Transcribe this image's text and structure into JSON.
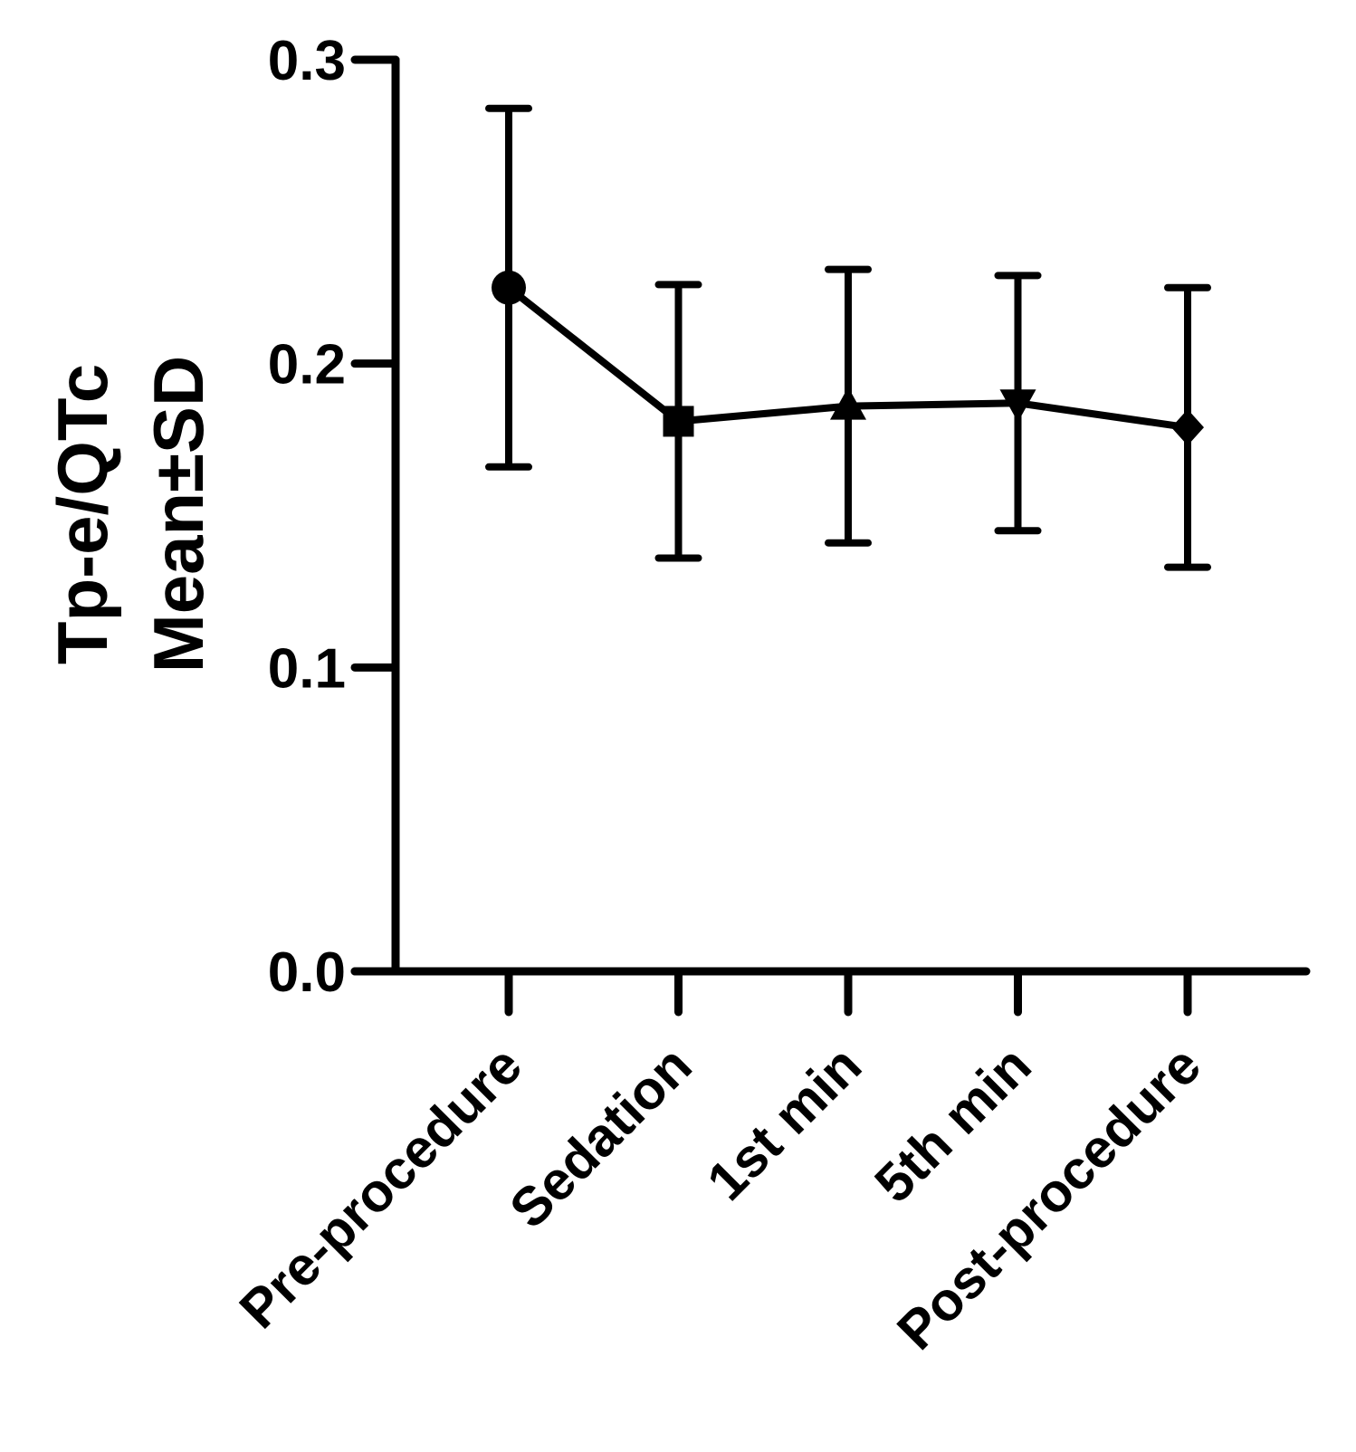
{
  "chart_data": {
    "type": "line",
    "title": "",
    "ylabel": [
      "Tp-e/QTc",
      "Mean±SD"
    ],
    "xlabel": "",
    "ylim": [
      0,
      0.3
    ],
    "yticks": [
      "0.0",
      "0.1",
      "0.2",
      "0.3"
    ],
    "categories": [
      "Pre-procedure",
      "Sedation",
      "1st min",
      "5th min",
      "Post-procedure"
    ],
    "series": [
      {
        "values": [
          0.225,
          0.181,
          0.186,
          0.187,
          0.179
        ],
        "sd": [
          0.059,
          0.045,
          0.045,
          0.042,
          0.046
        ],
        "markers": [
          "circle",
          "square",
          "triangle-up",
          "triangle-down",
          "diamond"
        ],
        "color": "#000000"
      }
    ],
    "grid": false,
    "legend": "none"
  }
}
